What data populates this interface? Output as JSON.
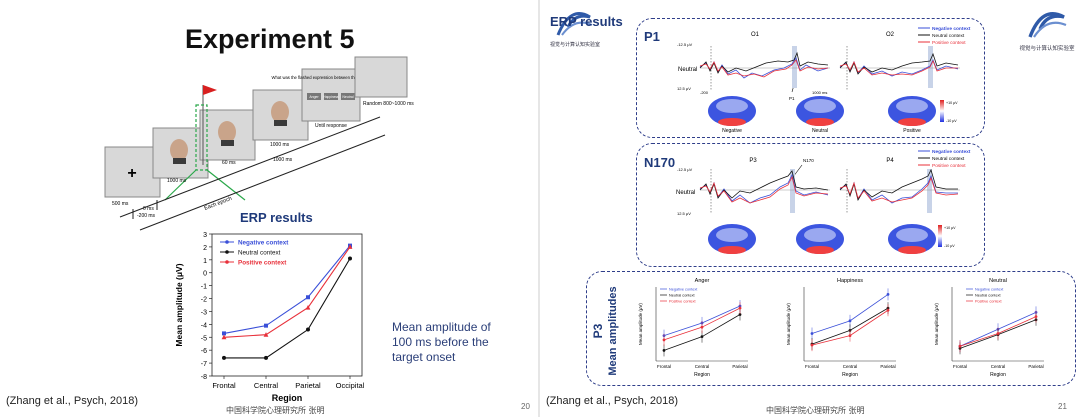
{
  "left_slide": {
    "title": "Experiment 5",
    "paradigm": {
      "fixation": "+",
      "t500": "500 ms",
      "t0": "0 ms",
      "tm200": "-200 ms",
      "t1000a": "1000 ms",
      "t60": "60 ms",
      "t1000b": "1000 ms",
      "t1000c": "1000 ms",
      "until": "Until response",
      "random": "Random 800~1000 ms",
      "question": "What was the flashed expression between the two expressions?",
      "opt1": "Anger",
      "opt2": "Happiness",
      "opt3": "Neutral",
      "epoch": "Each epoch"
    },
    "erp_title": "ERP results",
    "note": "Mean amplitude of 100 ms before the target onset",
    "citation": "(Zhang et al., Psych, 2018)",
    "footer": "中国科学院心理研究所 张明",
    "page": "20"
  },
  "right_slide": {
    "erp_title": "ERP results",
    "logo_text": "视觉与计算认知实验室",
    "citation": "(Zhang et al., Psych, 2018)",
    "footer": "中国科学院心理研究所 张明",
    "page": "21",
    "p1": {
      "tag": "P1",
      "left_label": "O1",
      "right_label": "O2",
      "peak_label": "P1",
      "y_top": "-12.5 μV",
      "y_bottom": "12.5 μV",
      "x_start": "-200",
      "x_end": "1000 ms",
      "neutral": "Neutral",
      "topo": [
        "Negative",
        "Neutral",
        "Positive"
      ],
      "scale_top": "+10 μV",
      "scale_bottom": "-10 μV"
    },
    "n170": {
      "tag": "N170",
      "left_label": "P3",
      "right_label": "P4",
      "peak_label": "N170",
      "y_top": "-12.5 μV",
      "y_bottom": "12.5 μV",
      "neutral": "Neutral",
      "topo": [
        "Negative",
        "Neutral",
        "Positive"
      ],
      "scale_top": "+10 μV",
      "scale_bottom": "-10 μV"
    },
    "legend": [
      "Negative context",
      "Neutral context",
      "Positive context"
    ],
    "p3": {
      "tag": "P3",
      "ylabel": "Mean amplitudes",
      "sub_ylabel": "Mean amplitude (μV)",
      "xlabel": "Region",
      "panels": [
        "Anger",
        "Happiness",
        "Neutral"
      ]
    }
  },
  "colors": {
    "negative": "#3a4fd8",
    "neutral": "#111111",
    "positive": "#e8303a",
    "accent": "#1f3a7a"
  },
  "chart_data": [
    {
      "type": "line",
      "title": "ERP results",
      "xlabel": "Region",
      "ylabel": "Mean amplitude (μV)",
      "categories": [
        "Frontal",
        "Central",
        "Parietal",
        "Occipital"
      ],
      "ylim": [
        -8,
        3
      ],
      "yticks": [
        3,
        2,
        1,
        0,
        -1,
        -2,
        -3,
        -4,
        -5,
        -6,
        -7,
        -8
      ],
      "legend_position": "top-left",
      "series": [
        {
          "name": "Negative context",
          "values": [
            -4.7,
            -4.1,
            -1.9,
            2.1
          ]
        },
        {
          "name": "Neutral context",
          "values": [
            -6.6,
            -6.6,
            -4.4,
            1.1
          ]
        },
        {
          "name": "Positive context",
          "values": [
            -5.0,
            -4.8,
            -2.7,
            2.0
          ]
        }
      ]
    },
    {
      "type": "line",
      "title": "Anger",
      "xlabel": "Region",
      "ylabel": "Mean amplitude (μV)",
      "categories": [
        "Frontal",
        "Central",
        "Parietal"
      ],
      "ylim": [
        -2,
        5
      ],
      "series": [
        {
          "name": "Negative context",
          "values": [
            0.4,
            1.6,
            3.2
          ]
        },
        {
          "name": "Neutral context",
          "values": [
            -1.0,
            0.3,
            2.4
          ]
        },
        {
          "name": "Positive context",
          "values": [
            0.0,
            1.2,
            3.0
          ]
        }
      ]
    },
    {
      "type": "line",
      "title": "Happiness",
      "xlabel": "Region",
      "ylabel": "Mean amplitude (μV)",
      "categories": [
        "Frontal",
        "Central",
        "Parietal"
      ],
      "ylim": [
        -2,
        5
      ],
      "series": [
        {
          "name": "Negative context",
          "values": [
            0.6,
            1.8,
            4.3
          ]
        },
        {
          "name": "Neutral context",
          "values": [
            -0.4,
            0.9,
            3.0
          ]
        },
        {
          "name": "Positive context",
          "values": [
            -0.5,
            0.4,
            2.8
          ]
        }
      ]
    },
    {
      "type": "line",
      "title": "Neutral",
      "xlabel": "Region",
      "ylabel": "Mean amplitude (μV)",
      "categories": [
        "Frontal",
        "Central",
        "Parietal"
      ],
      "ylim": [
        -2,
        5
      ],
      "series": [
        {
          "name": "Negative context",
          "values": [
            -0.6,
            1.0,
            2.6
          ]
        },
        {
          "name": "Neutral context",
          "values": [
            -0.8,
            0.5,
            1.9
          ]
        },
        {
          "name": "Positive context",
          "values": [
            -0.6,
            0.6,
            2.2
          ]
        }
      ]
    }
  ]
}
